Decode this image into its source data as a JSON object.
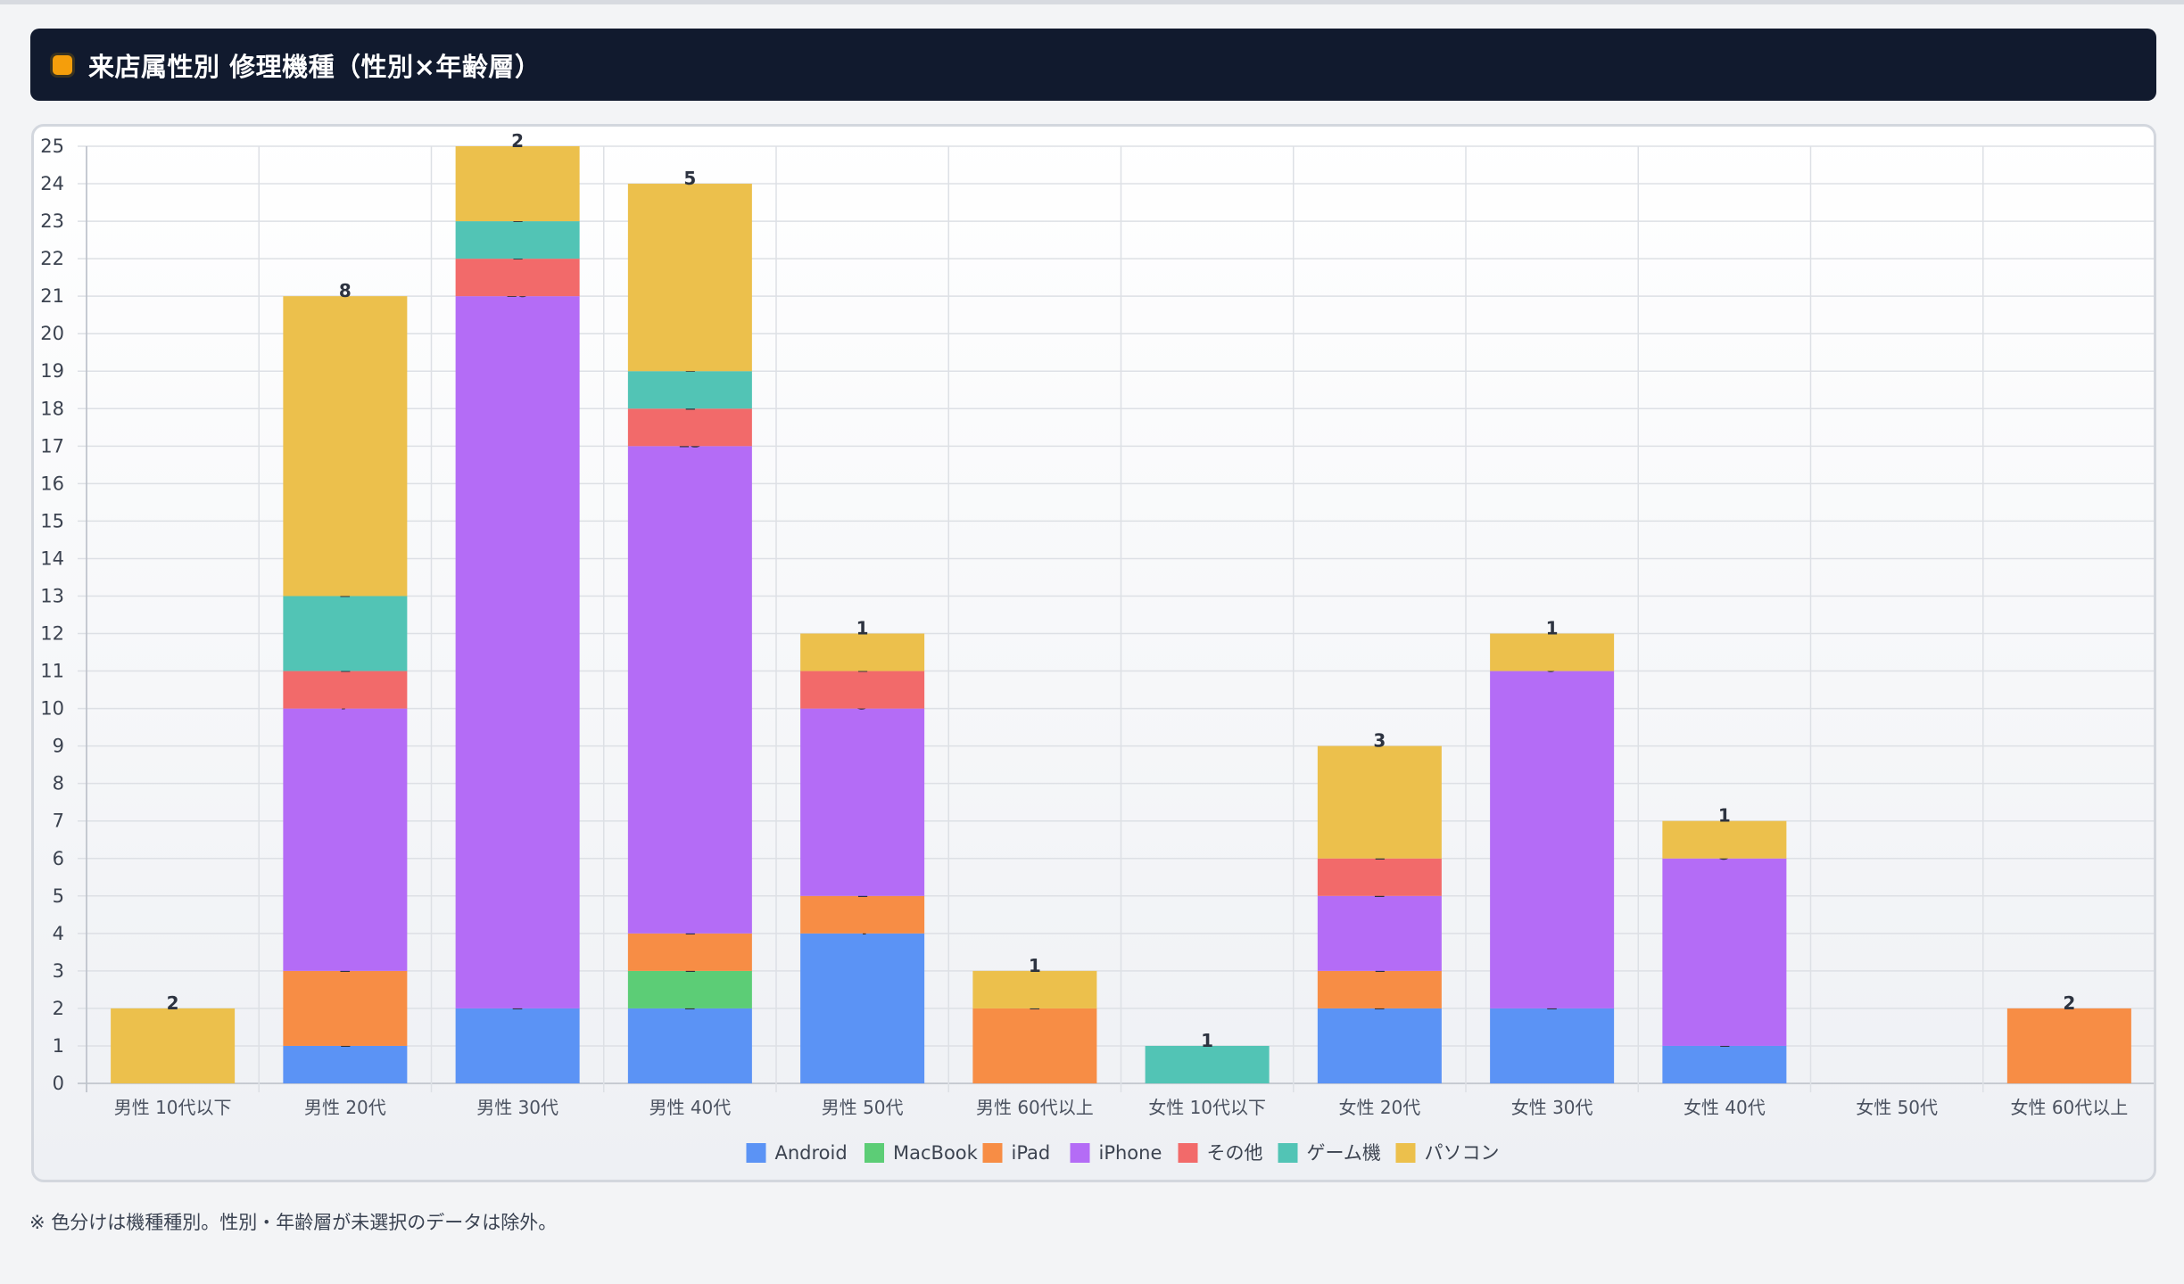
{
  "header": {
    "title": "来店属性別 修理機種（性別×年齢層）",
    "swatch_color": "#f59e0b",
    "background": "#111a2e"
  },
  "note": "※ 色分けは機種種別。性別・年齢層が未選択のデータは除外。",
  "chart_data": {
    "type": "bar",
    "stacked": true,
    "categories": [
      "男性 10代以下",
      "男性 20代",
      "男性 30代",
      "男性 40代",
      "男性 50代",
      "男性 60代以上",
      "女性 10代以下",
      "女性 20代",
      "女性 30代",
      "女性 40代",
      "女性 50代",
      "女性 60代以上"
    ],
    "series": [
      {
        "name": "Android",
        "color": "#5b93f5",
        "values": [
          0,
          1,
          2,
          2,
          4,
          0,
          0,
          2,
          2,
          1,
          0,
          0
        ]
      },
      {
        "name": "MacBook",
        "color": "#5ccd76",
        "values": [
          0,
          0,
          0,
          1,
          0,
          0,
          0,
          0,
          0,
          0,
          0,
          0
        ]
      },
      {
        "name": "iPad",
        "color": "#f78d45",
        "values": [
          0,
          2,
          0,
          1,
          1,
          2,
          0,
          1,
          0,
          0,
          0,
          2
        ]
      },
      {
        "name": "iPhone",
        "color": "#b46cf6",
        "values": [
          0,
          7,
          19,
          13,
          5,
          0,
          0,
          2,
          9,
          5,
          0,
          0
        ]
      },
      {
        "name": "その他",
        "color": "#f26a6a",
        "values": [
          0,
          1,
          1,
          1,
          1,
          0,
          0,
          1,
          0,
          0,
          0,
          0
        ]
      },
      {
        "name": "ゲーム機",
        "color": "#52c4b5",
        "values": [
          0,
          2,
          1,
          1,
          0,
          0,
          1,
          0,
          0,
          0,
          0,
          0
        ]
      },
      {
        "name": "パソコン",
        "color": "#ecc04c",
        "values": [
          2,
          8,
          2,
          5,
          1,
          1,
          0,
          3,
          1,
          1,
          0,
          0
        ]
      }
    ],
    "ylim": [
      0,
      25
    ],
    "ytick_step": 1,
    "grid": true,
    "legend_position": "bottom"
  }
}
